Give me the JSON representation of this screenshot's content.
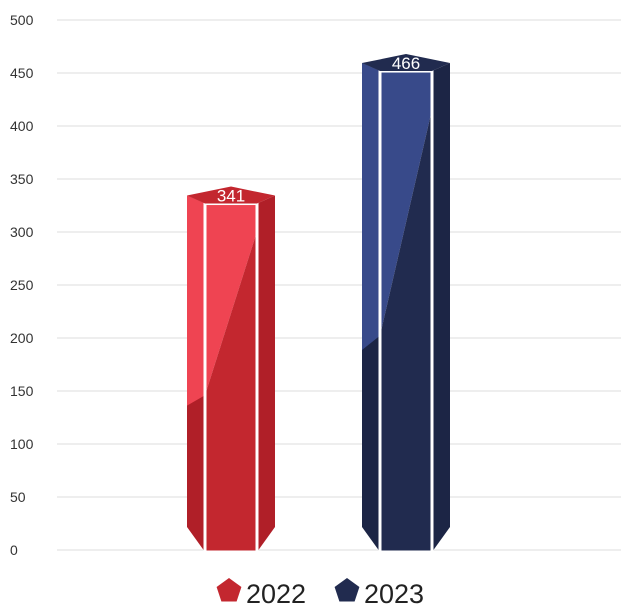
{
  "chart_data": {
    "type": "bar",
    "title": "",
    "xlabel": "",
    "ylabel": "",
    "categories": [
      "2022",
      "2023"
    ],
    "values": [
      341,
      466
    ],
    "value_labels": [
      "341",
      "466"
    ],
    "ylim": [
      0,
      500
    ],
    "yticks": [
      "0",
      "50",
      "100",
      "150",
      "200",
      "250",
      "300",
      "350",
      "400",
      "450",
      "500"
    ],
    "grid": "horizontal",
    "legend_position": "bottom",
    "legend": [
      "2022",
      "2023"
    ],
    "colors": {
      "2022": {
        "front": "#c3272f",
        "light": "#ef4452",
        "side": "#b01f28",
        "cap": "#c3272f"
      },
      "2023": {
        "front": "#212b4f",
        "light": "#384a8a",
        "side": "#1c2545",
        "cap": "#212b4f"
      }
    },
    "style": "3d-hexagonal-prism"
  }
}
